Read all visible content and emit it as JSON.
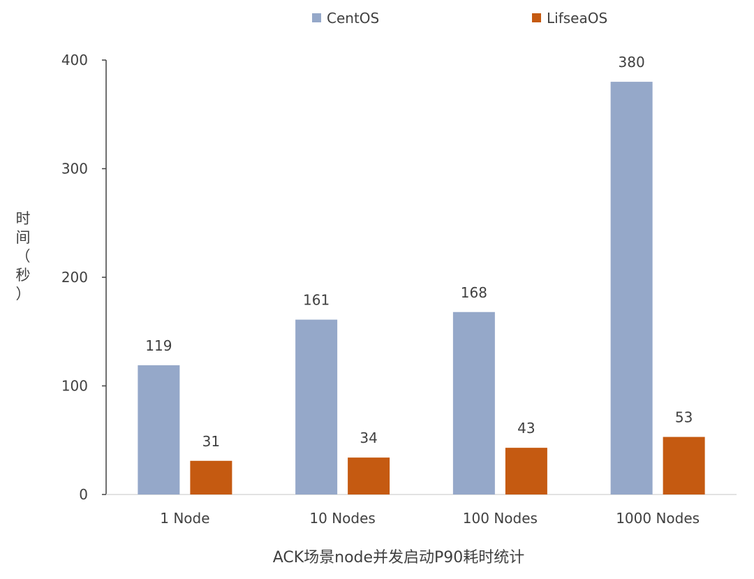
{
  "chart_data": {
    "type": "bar",
    "title": "ACK场景node并发启动P90耗时统计",
    "xlabel": "ACK场景node并发启动P90耗时统计",
    "ylabel": "时间（秒）",
    "ylabel_chars": [
      "时",
      "间",
      "（",
      "秒",
      "）"
    ],
    "categories": [
      "1 Node",
      "10 Nodes",
      "100 Nodes",
      "1000 Nodes"
    ],
    "series": [
      {
        "name": "CentOS",
        "color": "#95a8c9",
        "values": [
          119,
          161,
          168,
          380
        ]
      },
      {
        "name": "LifseaOS",
        "color": "#c55a11",
        "values": [
          31,
          34,
          43,
          53
        ]
      }
    ],
    "ylim": [
      0,
      400
    ],
    "yticks": [
      0,
      100,
      200,
      300,
      400
    ],
    "grid": false,
    "legend": "top-center"
  }
}
